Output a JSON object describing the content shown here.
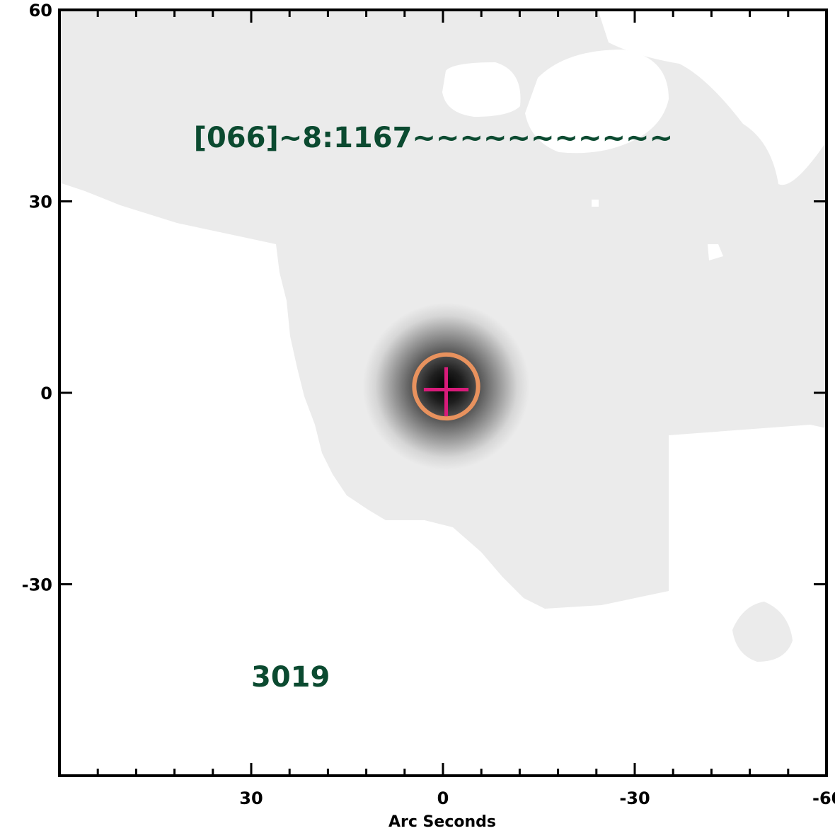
{
  "chart_data": {
    "type": "heatmap",
    "title": "",
    "xlabel": "Arc Seconds",
    "ylabel": "",
    "xlim": [
      60,
      -60
    ],
    "ylim": [
      -60,
      60
    ],
    "xticks": [
      30,
      0,
      -30,
      -60
    ],
    "xtick_labels": [
      "30",
      "0",
      "-30",
      "-60"
    ],
    "yticks": [
      60,
      30,
      0,
      -30
    ],
    "ytick_labels": [
      "60",
      "30",
      "0",
      "-30"
    ],
    "annotations": [
      {
        "text": "[066]~8:1167~~~~~~~~~~~",
        "x": 39,
        "y": 38.5,
        "color": "#0b4a30"
      },
      {
        "text": "3019",
        "x": 30,
        "y": -46,
        "color": "#0b4a30"
      }
    ],
    "source": {
      "x": -0.5,
      "y": 1,
      "color": "#000000"
    },
    "aperture": {
      "x": -0.5,
      "y": 1,
      "radius": 5,
      "color": "#e8925e"
    },
    "crosshair": {
      "x": -0.5,
      "y": 0.5,
      "size": 3.5,
      "color": "#d81b7a"
    },
    "background_color": "#ebebeb",
    "empty_color": "#ffffff"
  }
}
